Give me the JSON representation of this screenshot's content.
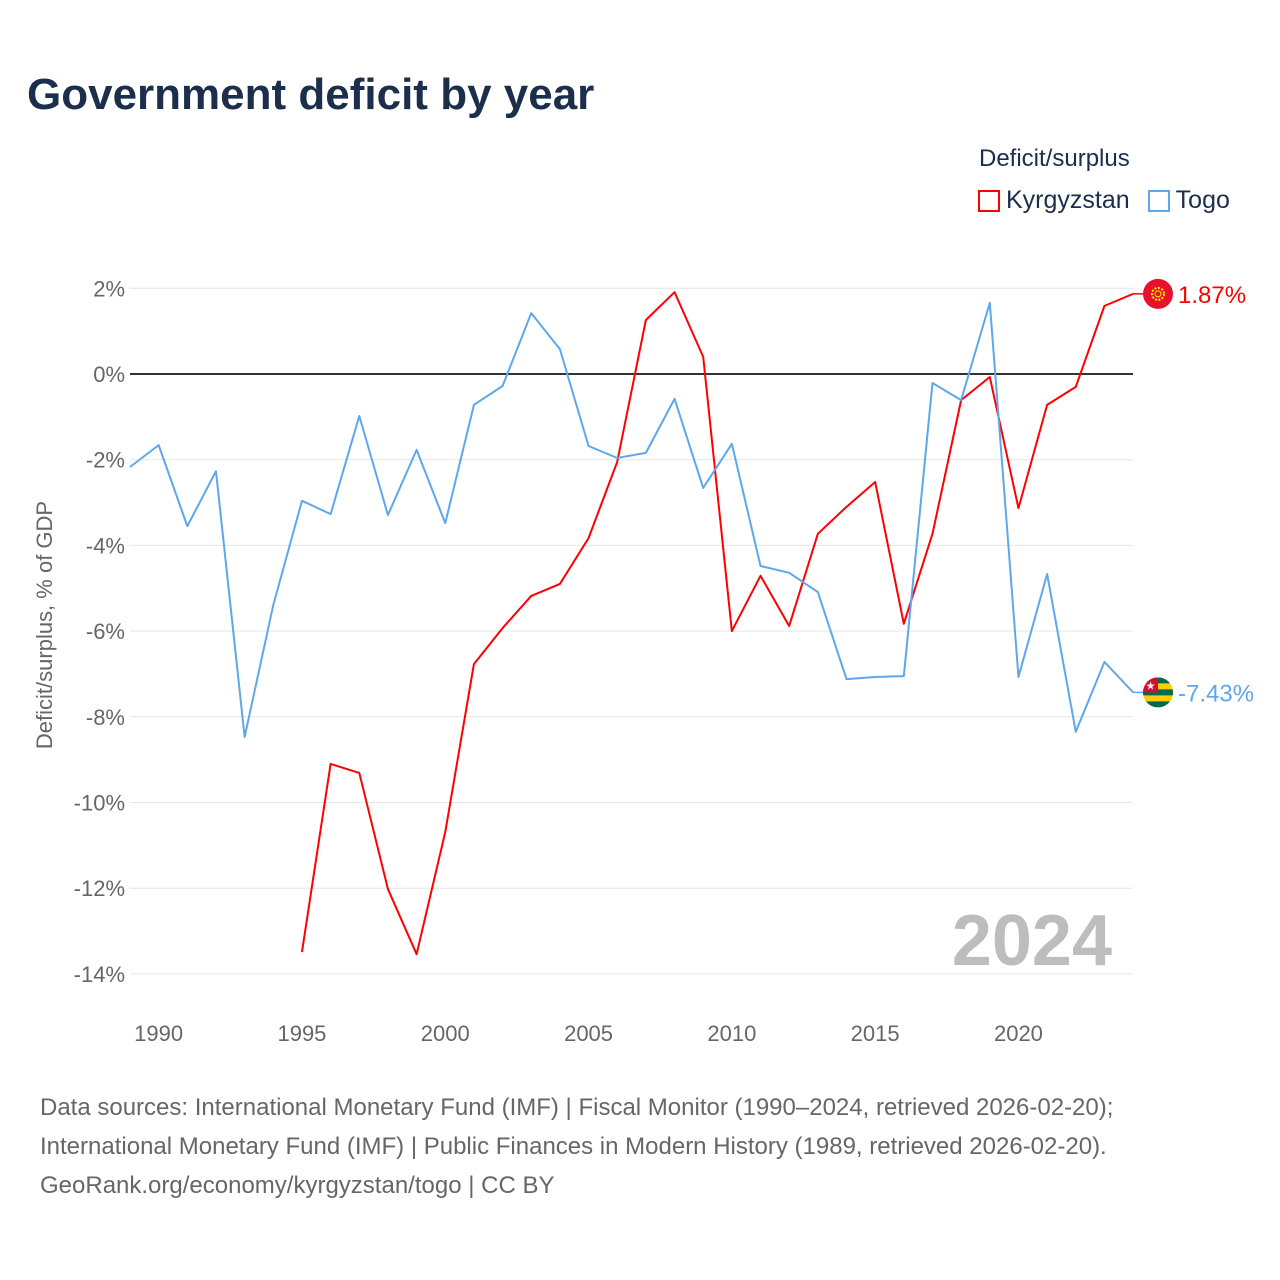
{
  "title": "Government deficit by year",
  "legend": {
    "title": "Deficit/surplus",
    "items": [
      {
        "name": "Kyrgyzstan",
        "color": "#ff0000"
      },
      {
        "name": "Togo",
        "color": "#5ea7ec"
      }
    ]
  },
  "chart_data": {
    "type": "line",
    "ylabel": "Deficit/surplus, % of GDP",
    "xlabel": "",
    "xlim": [
      1989,
      2024
    ],
    "ylim": [
      -15,
      2.5
    ],
    "x_ticks": [
      1990,
      1995,
      2000,
      2005,
      2010,
      2015,
      2020
    ],
    "y_ticks": [
      2,
      0,
      -2,
      -4,
      -6,
      -8,
      -10,
      -12,
      -14
    ],
    "y_tick_labels": [
      "2%",
      "0%",
      "-2%",
      "-4%",
      "-6%",
      "-8%",
      "-10%",
      "-12%",
      "-14%"
    ],
    "year_watermark": "2024",
    "series": [
      {
        "name": "Kyrgyzstan",
        "color": "#ff0000",
        "end_label": "1.87%",
        "x": [
          1995,
          1996,
          1997,
          1998,
          1999,
          2000,
          2001,
          2002,
          2003,
          2004,
          2005,
          2006,
          2007,
          2008,
          2009,
          2010,
          2011,
          2012,
          2013,
          2014,
          2015,
          2016,
          2017,
          2018,
          2019,
          2020,
          2021,
          2022,
          2023,
          2024
        ],
        "values": [
          -13.49,
          -9.1,
          -9.31,
          -12.02,
          -13.54,
          -10.69,
          -6.77,
          -5.93,
          -5.18,
          -4.9,
          -3.83,
          -2.05,
          1.26,
          1.91,
          0.4,
          -6.0,
          -4.71,
          -5.88,
          -3.73,
          -3.1,
          -2.52,
          -5.83,
          -3.73,
          -0.61,
          -0.07,
          -3.13,
          -0.72,
          -0.3,
          1.59,
          1.87
        ]
      },
      {
        "name": "Togo",
        "color": "#5ea7ec",
        "end_label": "-7.43%",
        "x": [
          1989,
          1990,
          1991,
          1992,
          1993,
          1994,
          1995,
          1996,
          1997,
          1998,
          1999,
          2000,
          2001,
          2002,
          2003,
          2004,
          2005,
          2006,
          2007,
          2008,
          2009,
          2010,
          2011,
          2012,
          2013,
          2014,
          2015,
          2016,
          2017,
          2018,
          2019,
          2020,
          2021,
          2022,
          2023,
          2024
        ],
        "values": [
          -2.17,
          -1.66,
          -3.55,
          -2.27,
          -8.47,
          -5.39,
          -2.96,
          -3.27,
          -0.98,
          -3.29,
          -1.77,
          -3.48,
          -0.72,
          -0.28,
          1.42,
          0.58,
          -1.68,
          -1.96,
          -1.84,
          -0.58,
          -2.66,
          -1.63,
          -4.48,
          -4.64,
          -5.09,
          -7.12,
          -7.07,
          -7.05,
          -0.21,
          -0.61,
          1.66,
          -7.07,
          -4.67,
          -8.35,
          -6.72,
          -7.43
        ]
      }
    ]
  },
  "footer": {
    "line1": "Data sources: International Monetary Fund (IMF) | Fiscal Monitor (1990–2024, retrieved 2026-02-20);",
    "line2": "International Monetary Fund (IMF) | Public Finances in Modern History (1989, retrieved 2026-02-20).",
    "line3": "GeoRank.org/economy/kyrgyzstan/togo | CC BY"
  }
}
